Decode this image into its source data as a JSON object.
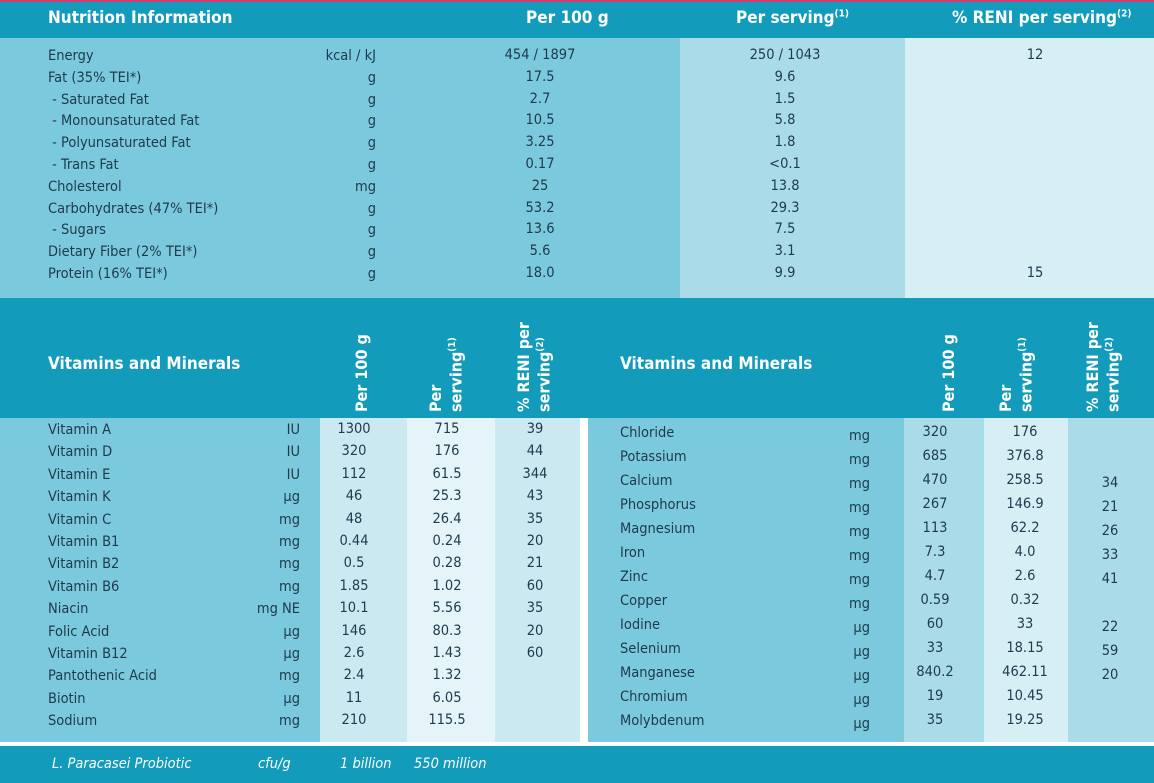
{
  "header": {
    "title": "Nutrition Information",
    "per100": "Per 100 g",
    "per_serving": "Per serving",
    "per_serving_note": "(1)",
    "reni": "% RENI per serving",
    "reni_note": "(2)"
  },
  "nutrition_rows": [
    {
      "name": "Energy",
      "unit": "kcal / kJ",
      "per100": "454 / 1897",
      "serving": "250 / 1043",
      "reni": "12"
    },
    {
      "name": "Fat (35% TEI*)",
      "unit": "g",
      "per100": "17.5",
      "serving": "9.6",
      "reni": ""
    },
    {
      "name": " - Saturated Fat",
      "unit": "g",
      "per100": "2.7",
      "serving": "1.5",
      "reni": ""
    },
    {
      "name": " - Monounsaturated Fat",
      "unit": "g",
      "per100": "10.5",
      "serving": "5.8",
      "reni": ""
    },
    {
      "name": " - Polyunsaturated Fat",
      "unit": "g",
      "per100": "3.25",
      "serving": "1.8",
      "reni": ""
    },
    {
      "name": " - Trans Fat",
      "unit": "g",
      "per100": "0.17",
      "serving": "<0.1",
      "reni": ""
    },
    {
      "name": "Cholesterol",
      "unit": "mg",
      "per100": "25",
      "serving": "13.8",
      "reni": ""
    },
    {
      "name": "Carbohydrates (47% TEI*)",
      "unit": "g",
      "per100": "53.2",
      "serving": "29.3",
      "reni": ""
    },
    {
      "name": " - Sugars",
      "unit": "g",
      "per100": "13.6",
      "serving": "7.5",
      "reni": ""
    },
    {
      "name": "Dietary Fiber (2% TEI*)",
      "unit": "g",
      "per100": "5.6",
      "serving": "3.1",
      "reni": ""
    },
    {
      "name": "Protein (16% TEI*)",
      "unit": "g",
      "per100": "18.0",
      "serving": "9.9",
      "reni": "15"
    }
  ],
  "vm_header": {
    "title": "Vitamins and Minerals",
    "per100": "Per 100 g",
    "per_serving_1": "Per",
    "per_serving_2": "serving",
    "per_serving_note": "(1)",
    "reni_1": "% RENI per",
    "reni_2": "serving",
    "reni_note": "(2)"
  },
  "vm_left": [
    {
      "name": "Vitamin A",
      "unit": "IU",
      "per100": "1300",
      "serving": "715",
      "reni": "39"
    },
    {
      "name": "Vitamin D",
      "unit": "IU",
      "per100": "320",
      "serving": "176",
      "reni": "44"
    },
    {
      "name": "Vitamin E",
      "unit": "IU",
      "per100": "112",
      "serving": "61.5",
      "reni": "344"
    },
    {
      "name": "Vitamin K",
      "unit": "µg",
      "per100": "46",
      "serving": "25.3",
      "reni": "43"
    },
    {
      "name": "Vitamin C",
      "unit": "mg",
      "per100": "48",
      "serving": "26.4",
      "reni": "35"
    },
    {
      "name": "Vitamin B1",
      "unit": "mg",
      "per100": "0.44",
      "serving": "0.24",
      "reni": "20"
    },
    {
      "name": "Vitamin B2",
      "unit": "mg",
      "per100": "0.5",
      "serving": "0.28",
      "reni": "21"
    },
    {
      "name": "Vitamin B6",
      "unit": "mg",
      "per100": "1.85",
      "serving": "1.02",
      "reni": "60"
    },
    {
      "name": "Niacin",
      "unit": "mg NE",
      "per100": "10.1",
      "serving": "5.56",
      "reni": "35"
    },
    {
      "name": "Folic Acid",
      "unit": "µg",
      "per100": "146",
      "serving": "80.3",
      "reni": "20"
    },
    {
      "name": "Vitamin B12",
      "unit": "µg",
      "per100": "2.6",
      "serving": "1.43",
      "reni": "60"
    },
    {
      "name": "Pantothenic Acid",
      "unit": "mg",
      "per100": "2.4",
      "serving": "1.32",
      "reni": ""
    },
    {
      "name": "Biotin",
      "unit": "µg",
      "per100": "11",
      "serving": "6.05",
      "reni": ""
    },
    {
      "name": "Sodium",
      "unit": "mg",
      "per100": "210",
      "serving": "115.5",
      "reni": ""
    }
  ],
  "vm_right": [
    {
      "name": "Chloride",
      "unit": "mg",
      "per100": "320",
      "serving": "176",
      "reni": ""
    },
    {
      "name": "Potassium",
      "unit": "mg",
      "per100": "685",
      "serving": "376.8",
      "reni": ""
    },
    {
      "name": "Calcium",
      "unit": "mg",
      "per100": "470",
      "serving": "258.5",
      "reni": "34"
    },
    {
      "name": "Phosphorus",
      "unit": "mg",
      "per100": "267",
      "serving": "146.9",
      "reni": "21"
    },
    {
      "name": "Magnesium",
      "unit": "mg",
      "per100": "113",
      "serving": "62.2",
      "reni": "26"
    },
    {
      "name": "Iron",
      "unit": "mg",
      "per100": "7.3",
      "serving": "4.0",
      "reni": "33"
    },
    {
      "name": "Zinc",
      "unit": "mg",
      "per100": "4.7",
      "serving": "2.6",
      "reni": "41"
    },
    {
      "name": "Copper",
      "unit": "mg",
      "per100": "0.59",
      "serving": "0.32",
      "reni": ""
    },
    {
      "name": "Iodine",
      "unit": "µg",
      "per100": "60",
      "serving": "33",
      "reni": "22"
    },
    {
      "name": "Selenium",
      "unit": "µg",
      "per100": "33",
      "serving": "18.15",
      "reni": "59"
    },
    {
      "name": "Manganese",
      "unit": "µg",
      "per100": "840.2",
      "serving": "462.11",
      "reni": "20"
    },
    {
      "name": "Chromium",
      "unit": "µg",
      "per100": "19",
      "serving": "10.45",
      "reni": ""
    },
    {
      "name": "Molybdenum",
      "unit": "µg",
      "per100": "35",
      "serving": "19.25",
      "reni": ""
    }
  ],
  "footer": {
    "name": "L. Paracasei Probiotic",
    "unit": "cfu/g",
    "per100": "1 billion",
    "serving": "550 million"
  }
}
